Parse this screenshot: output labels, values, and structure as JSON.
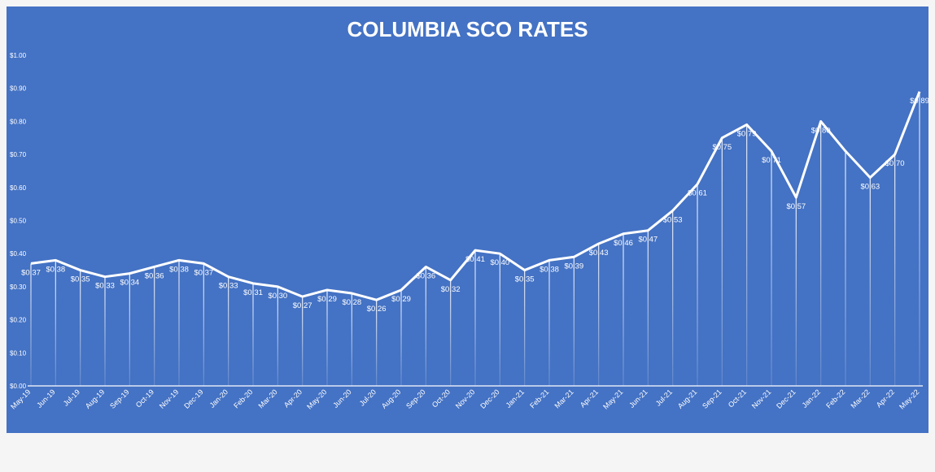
{
  "chart_data": {
    "type": "line",
    "title": "COLUMBIA SCO RATES",
    "xlabel": "",
    "ylabel": "",
    "ylim": [
      0,
      1.0
    ],
    "yticks": [
      0,
      0.1,
      0.2,
      0.3,
      0.4,
      0.5,
      0.6,
      0.7,
      0.8,
      0.9,
      1.0
    ],
    "ytick_labels": [
      "$0.00",
      "$0.10",
      "$0.20",
      "$0.30",
      "$0.40",
      "$0.50",
      "$0.60",
      "$0.70",
      "$0.80",
      "$0.90",
      "$1.00"
    ],
    "grid": false,
    "legend": "none",
    "categories": [
      "May-19",
      "Jun-19",
      "Jul-19",
      "Aug-19",
      "Sep-19",
      "Oct-19",
      "Nov-19",
      "Dec-19",
      "Jan-20",
      "Feb-20",
      "Mar-20",
      "Apr-20",
      "May-20",
      "Jun-20",
      "Jul-20",
      "Aug-20",
      "Sep-20",
      "Oct-20",
      "Nov-20",
      "Dec-20",
      "Jan-21",
      "Feb-21",
      "Mar-21",
      "Apr-21",
      "May-21",
      "Jun-21",
      "Jul-21",
      "Aug-21",
      "Sep-21",
      "Oct-21",
      "Nov-21",
      "Dec-21",
      "Jan-22",
      "Feb-22",
      "Mar-22",
      "Apr-22",
      "May-22"
    ],
    "series": [
      {
        "values": [
          0.37,
          0.38,
          0.35,
          0.33,
          0.34,
          0.36,
          0.38,
          0.37,
          0.33,
          0.31,
          0.3,
          0.27,
          0.29,
          0.28,
          0.26,
          0.29,
          0.36,
          0.32,
          0.41,
          0.4,
          0.35,
          0.38,
          0.39,
          0.43,
          0.46,
          0.47,
          0.53,
          0.61,
          0.75,
          0.79,
          0.71,
          0.57,
          0.8,
          0.71,
          0.63,
          0.7,
          0.89
        ],
        "labels": [
          "$0.37",
          "$0.38",
          "$0.35",
          "$0.33",
          "$0.34",
          "$0.36",
          "$0.38",
          "$0.37",
          "$0.33",
          "$0.31",
          "$0.30",
          "$0.27",
          "$0.29",
          "$0.28",
          "$0.26",
          "$0.29",
          "$0.36",
          "$0.32",
          "$0.41",
          "$0.40",
          "$0.35",
          "$0.38",
          "$0.39",
          "$0.43",
          "$0.46",
          "$0.47",
          "$0.53",
          "$0.61",
          "$0.75",
          "$0.79",
          "$0.71",
          "$0.57",
          "$0.80",
          "",
          "$0.63",
          "$0.70",
          "$0.89"
        ]
      }
    ],
    "colors": {
      "background": "#4472c4",
      "line": "#ffffff",
      "text": "#ffffff",
      "page": "#f5f5f6"
    }
  }
}
